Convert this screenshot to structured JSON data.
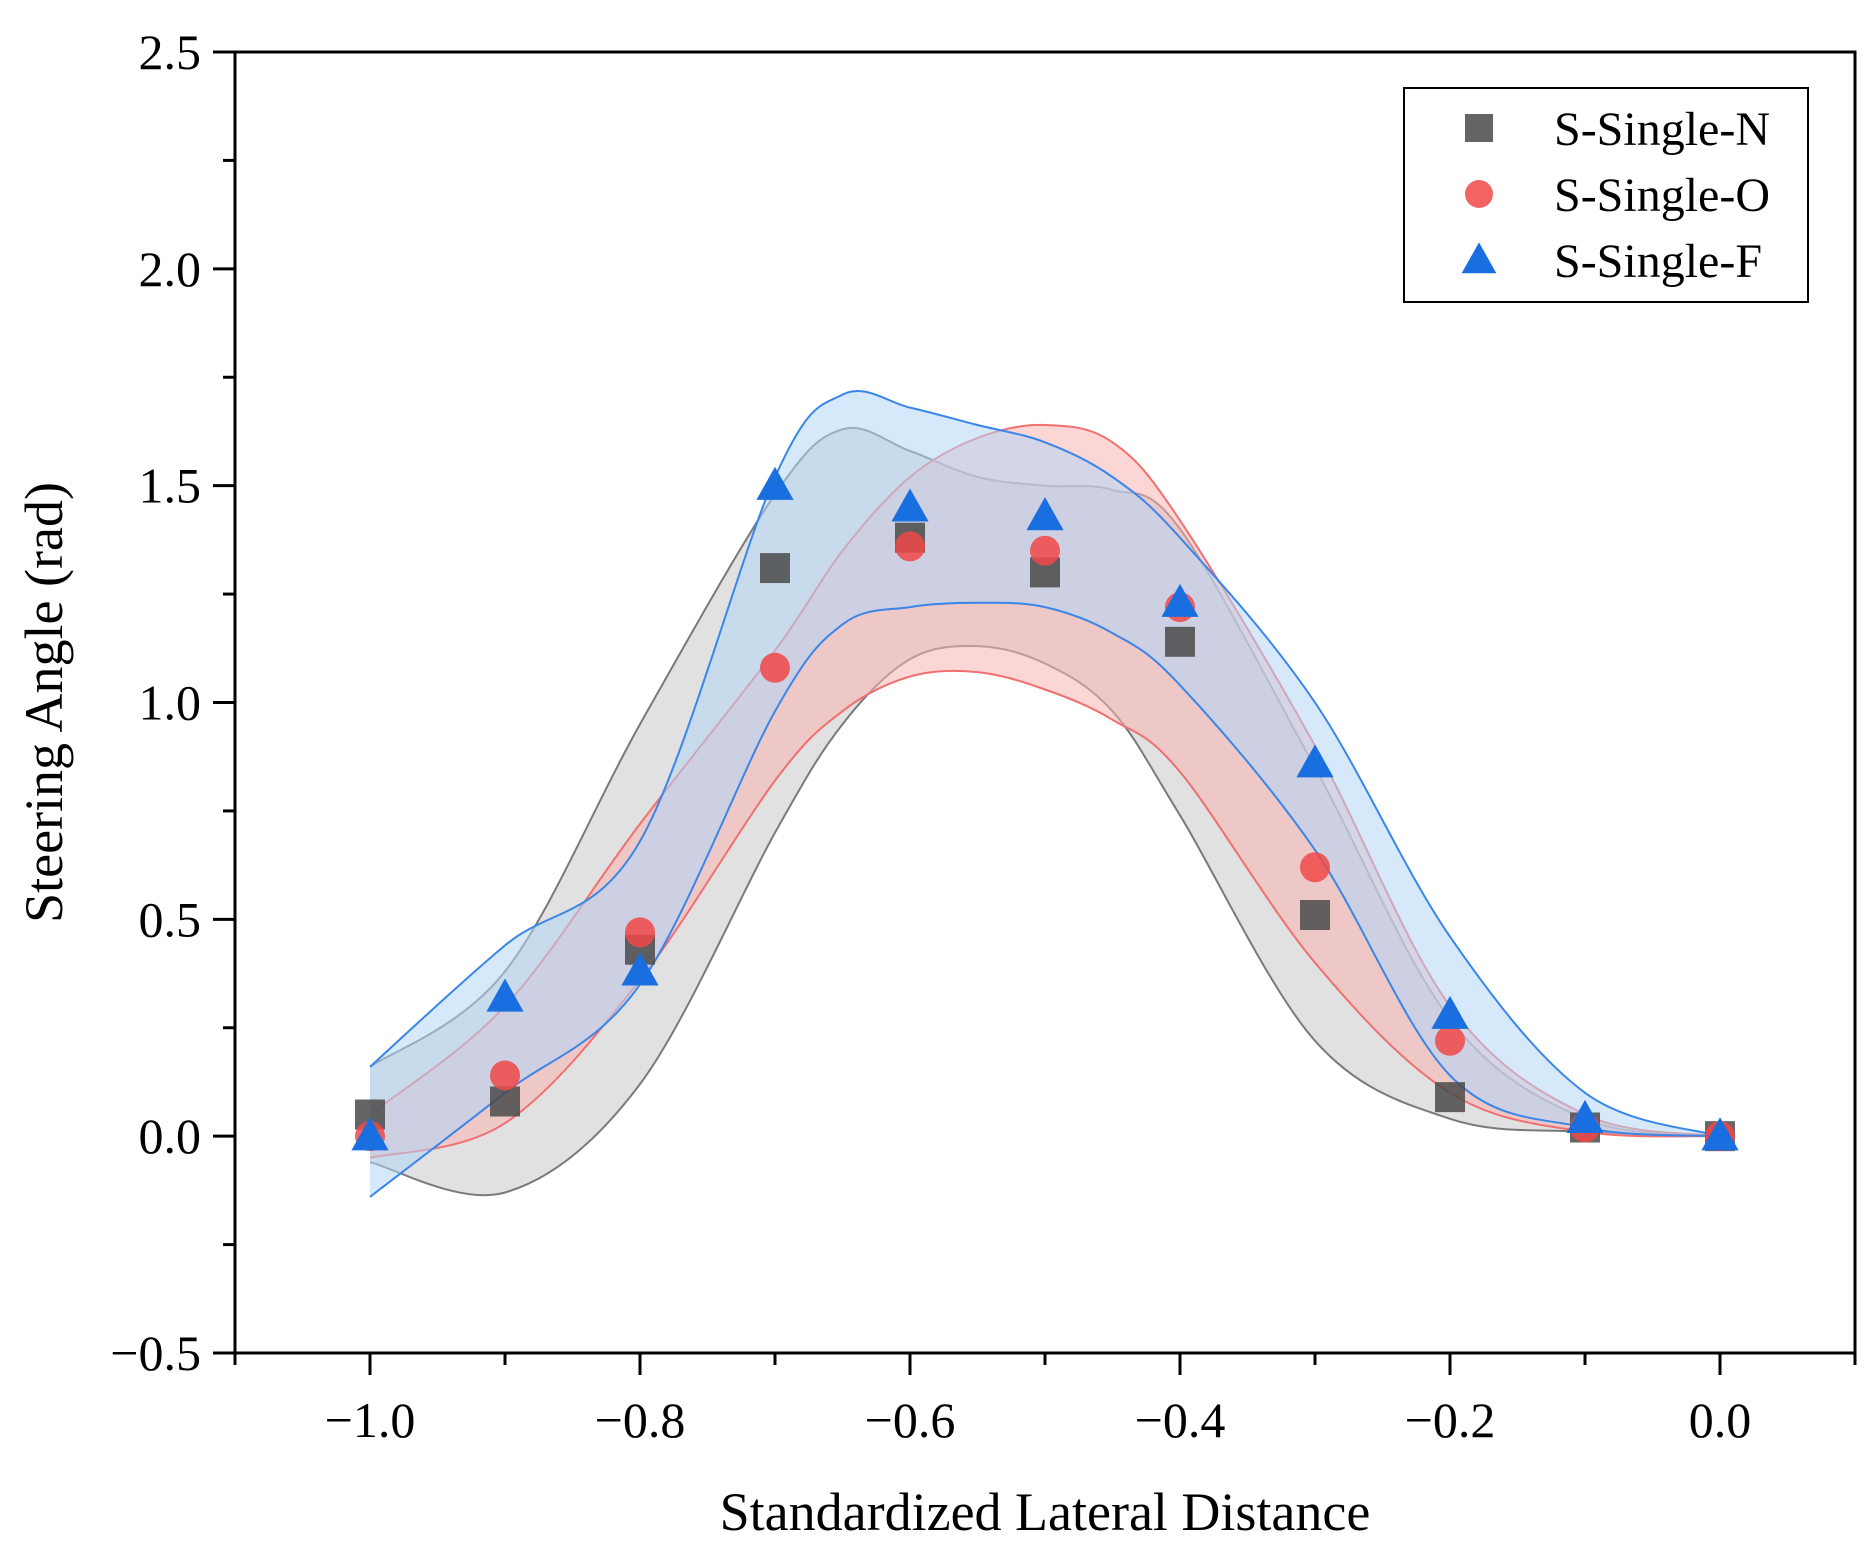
{
  "chart_data": {
    "type": "scatter",
    "xlabel": "Standardized Lateral Distance",
    "ylabel": "Steering Angle (rad)",
    "xlim": [
      -1.1,
      0.1
    ],
    "ylim": [
      -0.5,
      2.5
    ],
    "x_ticks": [
      -1.0,
      -0.8,
      -0.6,
      -0.4,
      -0.2,
      0.0
    ],
    "x_tick_labels": [
      "−1.0",
      "−0.8",
      "−0.6",
      "−0.4",
      "−0.2",
      "0.0"
    ],
    "y_ticks": [
      -0.5,
      0.0,
      0.5,
      1.0,
      1.5,
      2.0,
      2.5
    ],
    "y_tick_labels": [
      "−0.5",
      "0.0",
      "0.5",
      "1.0",
      "1.5",
      "2.0",
      "2.5"
    ],
    "legend_position": "top-right",
    "x": [
      -1.0,
      -0.9,
      -0.8,
      -0.7,
      -0.6,
      -0.5,
      -0.4,
      -0.3,
      -0.2,
      -0.1,
      0.0
    ],
    "series": [
      {
        "name": "S-Single-N",
        "marker": "square",
        "color": "#4a4a4a",
        "band_fill": "#c8c8c8",
        "band_stroke": "#7a7a7a",
        "values": [
          0.05,
          0.08,
          0.43,
          1.31,
          1.38,
          1.3,
          1.14,
          0.51,
          0.09,
          0.02,
          0.0
        ],
        "band_x": [
          -1.0,
          -0.9,
          -0.8,
          -0.7,
          -0.65,
          -0.6,
          -0.55,
          -0.5,
          -0.45,
          -0.4,
          -0.3,
          -0.2,
          -0.1,
          0.0
        ],
        "band_upper": [
          0.16,
          0.38,
          0.95,
          1.48,
          1.63,
          1.58,
          1.52,
          1.5,
          1.49,
          1.4,
          0.85,
          0.27,
          0.04,
          0.0
        ],
        "band_lower": [
          -0.06,
          -0.13,
          0.12,
          0.7,
          0.95,
          1.1,
          1.13,
          1.09,
          0.98,
          0.74,
          0.22,
          0.04,
          0.01,
          0.0
        ]
      },
      {
        "name": "S-Single-O",
        "marker": "circle",
        "color": "#f04848",
        "band_fill": "#f9b3b3",
        "band_stroke": "#f07070",
        "values": [
          0.0,
          0.14,
          0.47,
          1.08,
          1.36,
          1.35,
          1.22,
          0.62,
          0.22,
          0.02,
          0.0
        ],
        "band_x": [
          -1.0,
          -0.9,
          -0.8,
          -0.7,
          -0.65,
          -0.6,
          -0.55,
          -0.5,
          -0.45,
          -0.4,
          -0.3,
          -0.2,
          -0.1,
          0.0
        ],
        "band_upper": [
          0.05,
          0.3,
          0.72,
          1.12,
          1.35,
          1.52,
          1.61,
          1.64,
          1.6,
          1.42,
          0.9,
          0.3,
          0.05,
          0.0
        ],
        "band_lower": [
          -0.05,
          0.03,
          0.36,
          0.82,
          0.98,
          1.06,
          1.07,
          1.03,
          0.96,
          0.84,
          0.4,
          0.1,
          0.01,
          0.0
        ]
      },
      {
        "name": "S-Single-F",
        "marker": "triangle",
        "color": "#1a6fe0",
        "band_fill": "#b3d7f7",
        "band_stroke": "#3a86e8",
        "values": [
          0.0,
          0.32,
          0.38,
          1.5,
          1.45,
          1.43,
          1.23,
          0.86,
          0.28,
          0.04,
          0.0
        ],
        "band_x": [
          -1.0,
          -0.9,
          -0.8,
          -0.7,
          -0.65,
          -0.6,
          -0.55,
          -0.5,
          -0.45,
          -0.4,
          -0.3,
          -0.2,
          -0.1,
          0.0
        ],
        "band_upper": [
          0.16,
          0.44,
          0.68,
          1.52,
          1.71,
          1.68,
          1.64,
          1.6,
          1.52,
          1.38,
          1.0,
          0.46,
          0.1,
          0.0
        ],
        "band_lower": [
          -0.14,
          0.1,
          0.35,
          0.98,
          1.18,
          1.22,
          1.23,
          1.22,
          1.16,
          1.04,
          0.66,
          0.14,
          0.02,
          0.0
        ]
      }
    ]
  }
}
